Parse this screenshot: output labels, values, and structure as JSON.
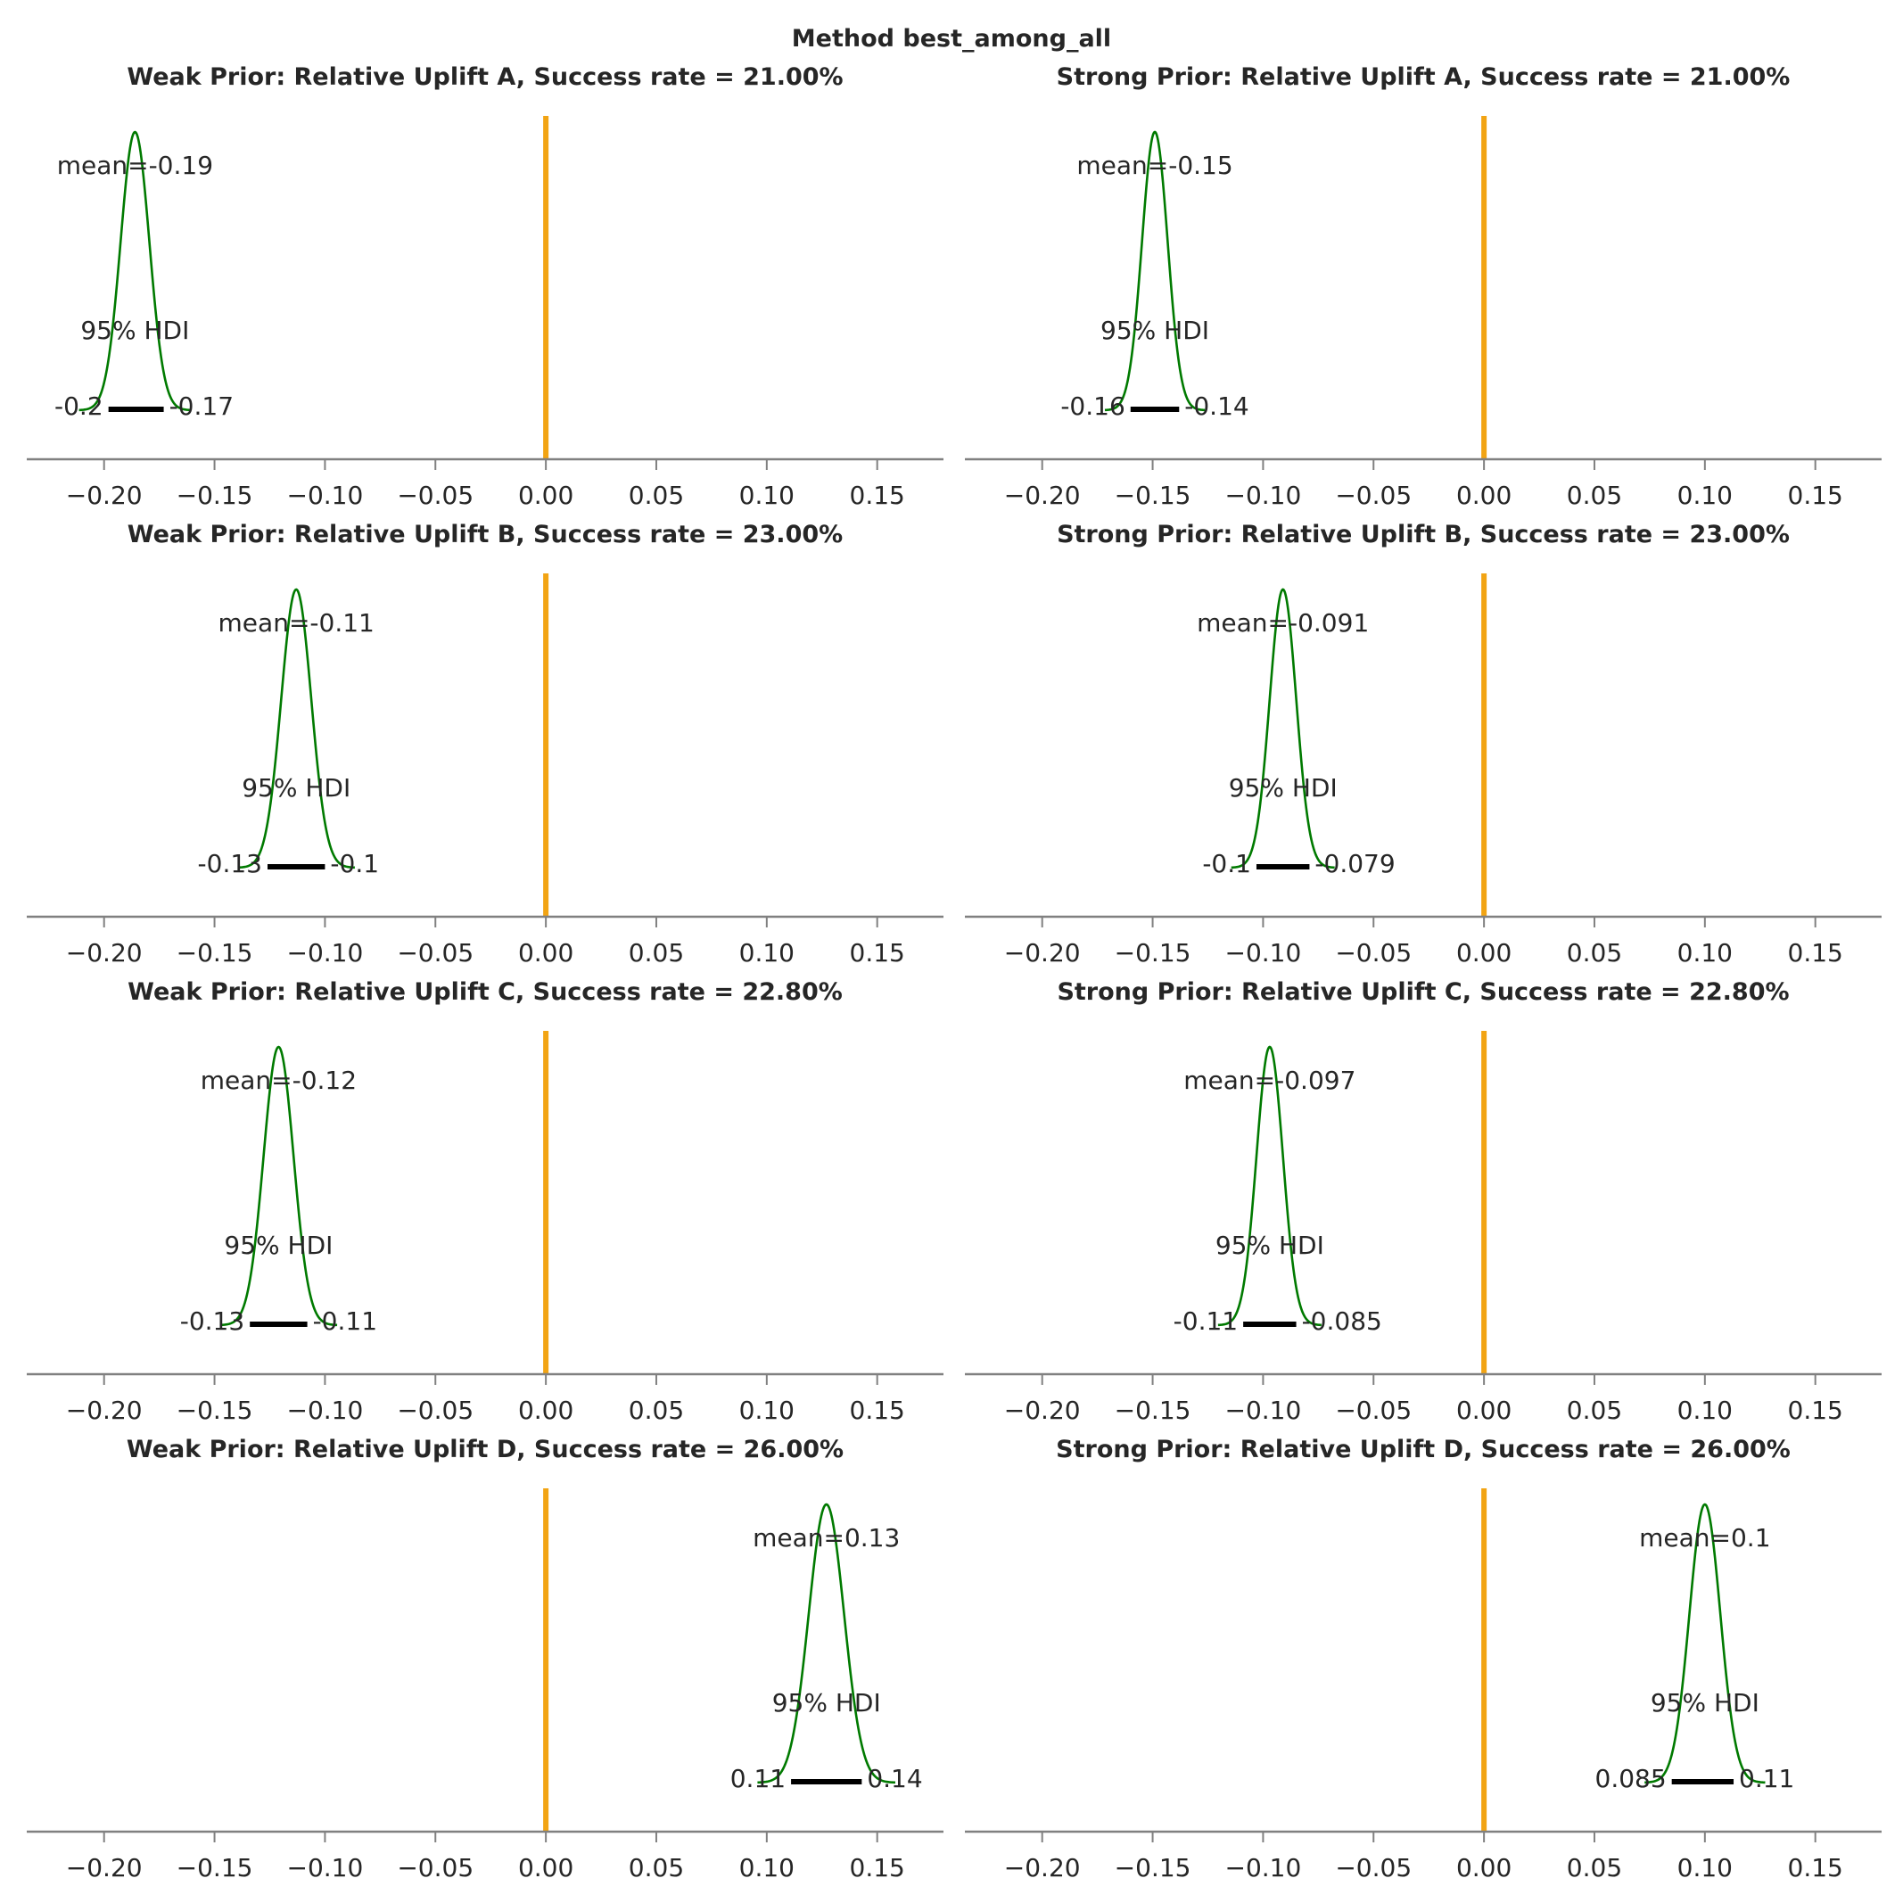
{
  "figure": {
    "suptitle": "Method best_among_all"
  },
  "colors": {
    "density": "#007a00",
    "reference_line": "#f2a413",
    "hdi_bar": "#000000",
    "axis": "#808080",
    "text": "#262626"
  },
  "chart_data": [
    {
      "type": "line",
      "plot_kind": "posterior density (KDE) with 95% HDI",
      "title": "Weak Prior: Relative Uplift A, Success rate = 21.00%",
      "xlim": [
        -0.235,
        0.18
      ],
      "xticks": [
        -0.2,
        -0.15,
        -0.1,
        -0.05,
        0.0,
        0.05,
        0.1,
        0.15
      ],
      "xtick_labels": [
        "−0.20",
        "−0.15",
        "−0.10",
        "−0.05",
        "0.00",
        "0.05",
        "0.10",
        "0.15"
      ],
      "reference_value": 0.0,
      "posterior": {
        "mean": -0.186,
        "sd": 0.0065
      },
      "mean_label": "mean=-0.19",
      "hdi_label": "95% HDI",
      "hdi": [
        -0.198,
        -0.173
      ],
      "hdi_labels": [
        "-0.2",
        "-0.17"
      ]
    },
    {
      "type": "line",
      "plot_kind": "posterior density (KDE) with 95% HDI",
      "title": "Strong Prior: Relative Uplift A, Success rate = 21.00%",
      "xlim": [
        -0.235,
        0.18
      ],
      "xticks": [
        -0.2,
        -0.15,
        -0.1,
        -0.05,
        0.0,
        0.05,
        0.1,
        0.15
      ],
      "xtick_labels": [
        "−0.20",
        "−0.15",
        "−0.10",
        "−0.05",
        "0.00",
        "0.05",
        "0.10",
        "0.15"
      ],
      "reference_value": 0.0,
      "posterior": {
        "mean": -0.149,
        "sd": 0.0058
      },
      "mean_label": "mean=-0.15",
      "hdi_label": "95% HDI",
      "hdi": [
        -0.16,
        -0.138
      ],
      "hdi_labels": [
        "-0.16",
        "-0.14"
      ]
    },
    {
      "type": "line",
      "plot_kind": "posterior density (KDE) with 95% HDI",
      "title": "Weak Prior: Relative Uplift B, Success rate = 23.00%",
      "xlim": [
        -0.235,
        0.18
      ],
      "xticks": [
        -0.2,
        -0.15,
        -0.1,
        -0.05,
        0.0,
        0.05,
        0.1,
        0.15
      ],
      "xtick_labels": [
        "−0.20",
        "−0.15",
        "−0.10",
        "−0.05",
        "0.00",
        "0.05",
        "0.10",
        "0.15"
      ],
      "reference_value": 0.0,
      "posterior": {
        "mean": -0.113,
        "sd": 0.0068
      },
      "mean_label": "mean=-0.11",
      "hdi_label": "95% HDI",
      "hdi": [
        -0.126,
        -0.1
      ],
      "hdi_labels": [
        "-0.13",
        "-0.1"
      ]
    },
    {
      "type": "line",
      "plot_kind": "posterior density (KDE) with 95% HDI",
      "title": "Strong Prior: Relative Uplift B, Success rate = 23.00%",
      "xlim": [
        -0.235,
        0.18
      ],
      "xticks": [
        -0.2,
        -0.15,
        -0.1,
        -0.05,
        0.0,
        0.05,
        0.1,
        0.15
      ],
      "xtick_labels": [
        "−0.20",
        "−0.15",
        "−0.10",
        "−0.05",
        "0.00",
        "0.05",
        "0.10",
        "0.15"
      ],
      "reference_value": 0.0,
      "posterior": {
        "mean": -0.091,
        "sd": 0.006
      },
      "mean_label": "mean=-0.091",
      "hdi_label": "95% HDI",
      "hdi": [
        -0.103,
        -0.079
      ],
      "hdi_labels": [
        "-0.1",
        "-0.079"
      ]
    },
    {
      "type": "line",
      "plot_kind": "posterior density (KDE) with 95% HDI",
      "title": "Weak Prior: Relative Uplift C, Success rate = 22.80%",
      "xlim": [
        -0.235,
        0.18
      ],
      "xticks": [
        -0.2,
        -0.15,
        -0.1,
        -0.05,
        0.0,
        0.05,
        0.1,
        0.15
      ],
      "xtick_labels": [
        "−0.20",
        "−0.15",
        "−0.10",
        "−0.05",
        "0.00",
        "0.05",
        "0.10",
        "0.15"
      ],
      "reference_value": 0.0,
      "posterior": {
        "mean": -0.121,
        "sd": 0.0068
      },
      "mean_label": "mean=-0.12",
      "hdi_label": "95% HDI",
      "hdi": [
        -0.134,
        -0.108
      ],
      "hdi_labels": [
        "-0.13",
        "-0.11"
      ]
    },
    {
      "type": "line",
      "plot_kind": "posterior density (KDE) with 95% HDI",
      "title": "Strong Prior: Relative Uplift C, Success rate = 22.80%",
      "xlim": [
        -0.235,
        0.18
      ],
      "xticks": [
        -0.2,
        -0.15,
        -0.1,
        -0.05,
        0.0,
        0.05,
        0.1,
        0.15
      ],
      "xtick_labels": [
        "−0.20",
        "−0.15",
        "−0.10",
        "−0.05",
        "0.00",
        "0.05",
        "0.10",
        "0.15"
      ],
      "reference_value": 0.0,
      "posterior": {
        "mean": -0.097,
        "sd": 0.006
      },
      "mean_label": "mean=-0.097",
      "hdi_label": "95% HDI",
      "hdi": [
        -0.109,
        -0.085
      ],
      "hdi_labels": [
        "-0.11",
        "-0.085"
      ]
    },
    {
      "type": "line",
      "plot_kind": "posterior density (KDE) with 95% HDI",
      "title": "Weak Prior: Relative Uplift D, Success rate = 26.00%",
      "xlim": [
        -0.235,
        0.18
      ],
      "xticks": [
        -0.2,
        -0.15,
        -0.1,
        -0.05,
        0.0,
        0.05,
        0.1,
        0.15
      ],
      "xtick_labels": [
        "−0.20",
        "−0.15",
        "−0.10",
        "−0.05",
        "0.00",
        "0.05",
        "0.10",
        "0.15"
      ],
      "reference_value": 0.0,
      "posterior": {
        "mean": 0.127,
        "sd": 0.008
      },
      "mean_label": "mean=0.13",
      "hdi_label": "95% HDI",
      "hdi": [
        0.111,
        0.143
      ],
      "hdi_labels": [
        "0.11",
        "0.14"
      ]
    },
    {
      "type": "line",
      "plot_kind": "posterior density (KDE) with 95% HDI",
      "title": "Strong Prior: Relative Uplift D, Success rate = 26.00%",
      "xlim": [
        -0.235,
        0.18
      ],
      "xticks": [
        -0.2,
        -0.15,
        -0.1,
        -0.05,
        0.0,
        0.05,
        0.1,
        0.15
      ],
      "xtick_labels": [
        "−0.20",
        "−0.15",
        "−0.10",
        "−0.05",
        "0.00",
        "0.05",
        "0.10",
        "0.15"
      ],
      "reference_value": 0.0,
      "posterior": {
        "mean": 0.1,
        "sd": 0.007
      },
      "mean_label": "mean=0.1",
      "hdi_label": "95% HDI",
      "hdi": [
        0.085,
        0.113
      ],
      "hdi_labels": [
        "0.085",
        "0.11"
      ]
    }
  ]
}
